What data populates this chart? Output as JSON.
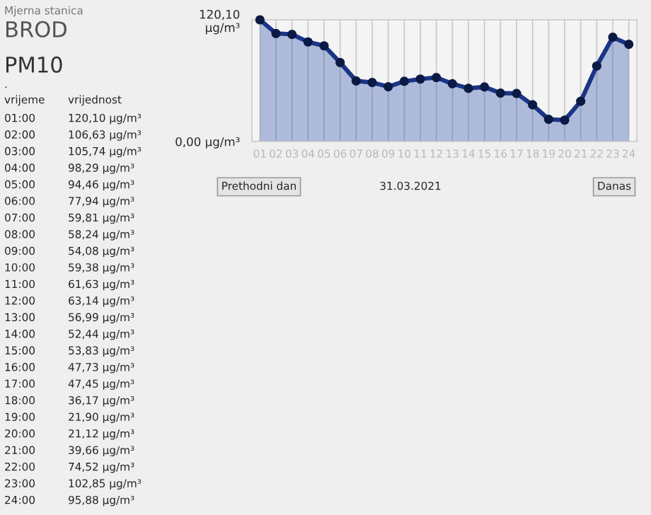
{
  "chart_data": {
    "type": "area",
    "title": "PM10",
    "subtitle": "BROD",
    "annotations": [
      "Mjerna stanica",
      ".",
      "vrijeme",
      "vrijednost",
      "01:00",
      "120,10 µg/m³",
      "02:00",
      "106,63 µg/m³",
      "03:00",
      "105,74 µg/m³",
      "04:00",
      "98,29 µg/m³",
      "05:00",
      "94,46 µg/m³",
      "06:00",
      "77,94 µg/m³",
      "07:00",
      "59,81 µg/m³",
      "08:00",
      "58,24 µg/m³",
      "09:00",
      "54,08 µg/m³",
      "10:00",
      "59,38 µg/m³",
      "11:00",
      "61,63 µg/m³",
      "12:00",
      "63,14 µg/m³",
      "13:00",
      "56,99 µg/m³",
      "14:00",
      "52,44 µg/m³",
      "15:00",
      "53,83 µg/m³",
      "16:00",
      "47,73 µg/m³",
      "17:00",
      "47,45 µg/m³",
      "18:00",
      "36,17 µg/m³",
      "19:00",
      "21,90 µg/m³",
      "20:00",
      "21,12 µg/m³",
      "21:00",
      "39,66 µg/m³",
      "22:00",
      "74,52 µg/m³",
      "23:00",
      "102,85 µg/m³",
      "24:00",
      "95,88 µg/m³",
      "Prethodni dan",
      "31.03.2021",
      "Danas"
    ],
    "categories": [
      "01",
      "02",
      "03",
      "04",
      "05",
      "06",
      "07",
      "08",
      "09",
      "10",
      "11",
      "12",
      "13",
      "14",
      "15",
      "16",
      "17",
      "18",
      "19",
      "20",
      "21",
      "22",
      "23",
      "24"
    ],
    "series": [
      {
        "color": "#1a3585",
        "values": [
          120.1,
          106.63,
          105.74,
          98.29,
          94.46,
          77.94,
          59.81,
          58.24,
          54.08,
          59.38,
          61.63,
          63.14,
          56.99,
          52.44,
          53.83,
          47.73,
          47.45,
          36.17,
          21.9,
          21.12,
          39.66,
          74.52,
          102.85,
          95.88
        ]
      }
    ],
    "ylim": [
      0,
      120.1
    ],
    "yticks": [
      {
        "value": 0,
        "label": "0,00 µg/m³"
      },
      {
        "value": 120.1,
        "label": "120,10\nµg/m³"
      }
    ],
    "grid": true,
    "marker": "circle",
    "line_style": "solid"
  }
}
